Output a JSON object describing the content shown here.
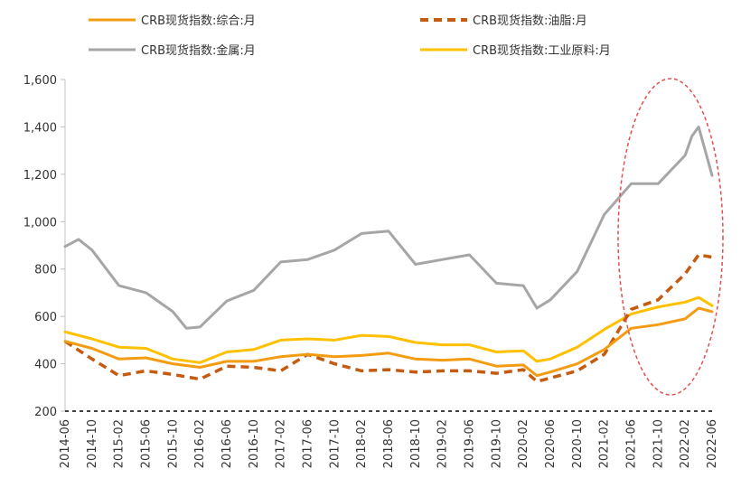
{
  "chart_data": {
    "type": "line",
    "title": "",
    "xlabel": "",
    "ylabel": "",
    "ylim": [
      200,
      1600
    ],
    "yticks": [
      200,
      400,
      600,
      800,
      1000,
      1200,
      1400,
      1600
    ],
    "ytick_labels": [
      "200",
      "400",
      "600",
      "800",
      "1,000",
      "1,200",
      "1,400",
      "1,600"
    ],
    "x_start": "2014-06",
    "x_end": "2022-06",
    "xtick_labels": [
      "2014-06",
      "2014-10",
      "2015-02",
      "2015-06",
      "2015-10",
      "2016-02",
      "2016-06",
      "2016-10",
      "2017-02",
      "2017-06",
      "2017-10",
      "2018-02",
      "2018-06",
      "2018-10",
      "2019-02",
      "2019-06",
      "2019-10",
      "2020-02",
      "2020-06",
      "2020-10",
      "2021-02",
      "2021-06",
      "2021-10",
      "2022-02",
      "2022-06"
    ],
    "grid": false,
    "legend_position": "top",
    "series": [
      {
        "name": "CRB现货指数:综合:月",
        "color": "#f39c12",
        "dash": "solid",
        "x": [
          "2014-06",
          "2014-10",
          "2015-02",
          "2015-06",
          "2015-10",
          "2016-02",
          "2016-06",
          "2016-10",
          "2017-02",
          "2017-06",
          "2017-10",
          "2018-02",
          "2018-06",
          "2018-10",
          "2019-02",
          "2019-06",
          "2019-10",
          "2020-02",
          "2020-04",
          "2020-06",
          "2020-10",
          "2021-02",
          "2021-06",
          "2021-10",
          "2022-02",
          "2022-04",
          "2022-06"
        ],
        "values": [
          495,
          465,
          420,
          425,
          400,
          385,
          410,
          410,
          430,
          440,
          430,
          435,
          445,
          420,
          415,
          420,
          390,
          395,
          350,
          365,
          400,
          460,
          550,
          565,
          590,
          635,
          620
        ]
      },
      {
        "name": "CRB现货指数:油脂:月",
        "color": "#c55a11",
        "dash": "dashed",
        "x": [
          "2014-06",
          "2014-10",
          "2015-02",
          "2015-06",
          "2015-10",
          "2016-02",
          "2016-06",
          "2016-10",
          "2017-02",
          "2017-06",
          "2017-10",
          "2018-02",
          "2018-06",
          "2018-10",
          "2019-02",
          "2019-06",
          "2019-10",
          "2020-02",
          "2020-04",
          "2020-06",
          "2020-10",
          "2021-02",
          "2021-06",
          "2021-10",
          "2022-02",
          "2022-04",
          "2022-06"
        ],
        "values": [
          495,
          420,
          350,
          370,
          355,
          335,
          390,
          385,
          370,
          440,
          400,
          370,
          375,
          365,
          370,
          370,
          360,
          375,
          325,
          340,
          370,
          440,
          630,
          670,
          780,
          860,
          850
        ]
      },
      {
        "name": "CRB现货指数:金属:月",
        "color": "#a6a6a6",
        "dash": "solid",
        "x": [
          "2014-06",
          "2014-08",
          "2014-10",
          "2015-02",
          "2015-06",
          "2015-10",
          "2015-12",
          "2016-02",
          "2016-06",
          "2016-10",
          "2017-02",
          "2017-06",
          "2017-10",
          "2018-02",
          "2018-06",
          "2018-10",
          "2019-02",
          "2019-06",
          "2019-10",
          "2020-02",
          "2020-04",
          "2020-06",
          "2020-10",
          "2021-02",
          "2021-06",
          "2021-10",
          "2022-02",
          "2022-03",
          "2022-04",
          "2022-06"
        ],
        "values": [
          895,
          925,
          880,
          730,
          700,
          620,
          550,
          555,
          665,
          710,
          830,
          840,
          880,
          950,
          960,
          820,
          840,
          860,
          740,
          730,
          635,
          670,
          790,
          1030,
          1160,
          1160,
          1280,
          1360,
          1400,
          1195
        ]
      },
      {
        "name": "CRB现货指数:工业原料:月",
        "color": "#ffc000",
        "dash": "solid",
        "x": [
          "2014-06",
          "2014-10",
          "2015-02",
          "2015-06",
          "2015-10",
          "2016-02",
          "2016-06",
          "2016-10",
          "2017-02",
          "2017-06",
          "2017-10",
          "2018-02",
          "2018-06",
          "2018-10",
          "2019-02",
          "2019-06",
          "2019-10",
          "2020-02",
          "2020-04",
          "2020-06",
          "2020-10",
          "2021-02",
          "2021-06",
          "2021-10",
          "2022-02",
          "2022-04",
          "2022-06"
        ],
        "values": [
          535,
          505,
          470,
          465,
          420,
          405,
          450,
          460,
          500,
          505,
          500,
          520,
          515,
          490,
          480,
          480,
          450,
          455,
          410,
          420,
          470,
          545,
          610,
          640,
          660,
          680,
          645
        ]
      }
    ]
  }
}
